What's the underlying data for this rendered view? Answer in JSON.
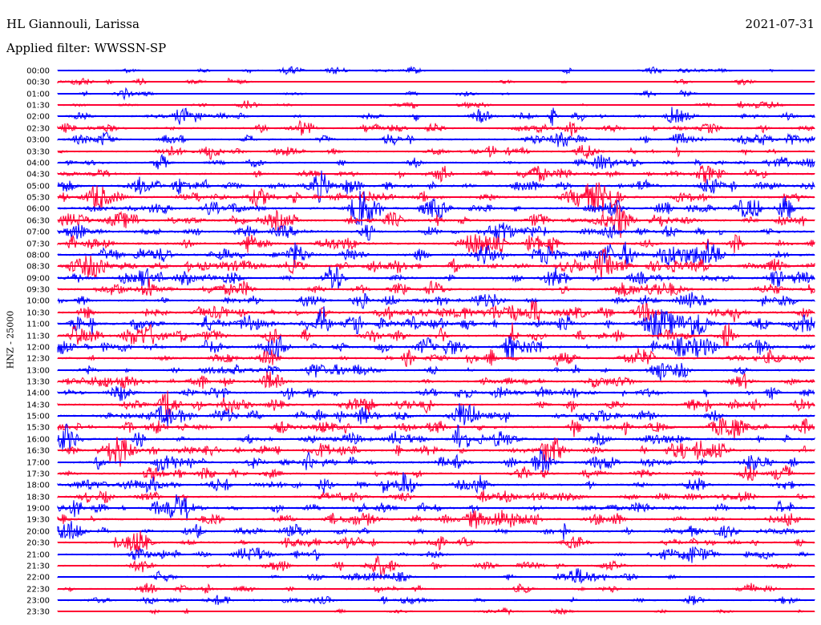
{
  "header": {
    "station": "HL Giannouli, Larissa",
    "date": "2021-07-31",
    "filter": "Applied filter: WWSSN-SP",
    "channel": "HNZ - 25000"
  },
  "trace_colors": [
    "#0000ff",
    "#ff0033"
  ],
  "rows": [
    {
      "time": "00:00",
      "color": "#0000ff",
      "activity": 0.25
    },
    {
      "time": "00:30",
      "color": "#ff0033",
      "activity": 0.2
    },
    {
      "time": "01:00",
      "color": "#0000ff",
      "activity": 0.2
    },
    {
      "time": "01:30",
      "color": "#ff0033",
      "activity": 0.3
    },
    {
      "time": "02:00",
      "color": "#0000ff",
      "activity": 0.55
    },
    {
      "time": "02:30",
      "color": "#ff0033",
      "activity": 0.55
    },
    {
      "time": "03:00",
      "color": "#0000ff",
      "activity": 0.6
    },
    {
      "time": "03:30",
      "color": "#ff0033",
      "activity": 0.5
    },
    {
      "time": "04:00",
      "color": "#0000ff",
      "activity": 0.5
    },
    {
      "time": "04:30",
      "color": "#ff0033",
      "activity": 0.6
    },
    {
      "time": "05:00",
      "color": "#0000ff",
      "activity": 0.75
    },
    {
      "time": "05:30",
      "color": "#ff0033",
      "activity": 0.75
    },
    {
      "time": "06:00",
      "color": "#0000ff",
      "activity": 0.8
    },
    {
      "time": "06:30",
      "color": "#ff0033",
      "activity": 0.8
    },
    {
      "time": "07:00",
      "color": "#0000ff",
      "activity": 0.75
    },
    {
      "time": "07:30",
      "color": "#ff0033",
      "activity": 0.8
    },
    {
      "time": "08:00",
      "color": "#0000ff",
      "activity": 0.85
    },
    {
      "time": "08:30",
      "color": "#ff0033",
      "activity": 0.85
    },
    {
      "time": "09:00",
      "color": "#0000ff",
      "activity": 0.7
    },
    {
      "time": "09:30",
      "color": "#ff0033",
      "activity": 0.75
    },
    {
      "time": "10:00",
      "color": "#0000ff",
      "activity": 0.7
    },
    {
      "time": "10:30",
      "color": "#ff0033",
      "activity": 0.8
    },
    {
      "time": "11:00",
      "color": "#0000ff",
      "activity": 0.9
    },
    {
      "time": "11:30",
      "color": "#ff0033",
      "activity": 0.8
    },
    {
      "time": "12:00",
      "color": "#0000ff",
      "activity": 0.8
    },
    {
      "time": "12:30",
      "color": "#ff0033",
      "activity": 0.7
    },
    {
      "time": "13:00",
      "color": "#0000ff",
      "activity": 0.6
    },
    {
      "time": "13:30",
      "color": "#ff0033",
      "activity": 0.65
    },
    {
      "time": "14:00",
      "color": "#0000ff",
      "activity": 0.65
    },
    {
      "time": "14:30",
      "color": "#ff0033",
      "activity": 0.7
    },
    {
      "time": "15:00",
      "color": "#0000ff",
      "activity": 0.75
    },
    {
      "time": "15:30",
      "color": "#ff0033",
      "activity": 0.7
    },
    {
      "time": "16:00",
      "color": "#0000ff",
      "activity": 0.75
    },
    {
      "time": "16:30",
      "color": "#ff0033",
      "activity": 0.8
    },
    {
      "time": "17:00",
      "color": "#0000ff",
      "activity": 0.8
    },
    {
      "time": "17:30",
      "color": "#ff0033",
      "activity": 0.6
    },
    {
      "time": "18:00",
      "color": "#0000ff",
      "activity": 0.65
    },
    {
      "time": "18:30",
      "color": "#ff0033",
      "activity": 0.6
    },
    {
      "time": "19:00",
      "color": "#0000ff",
      "activity": 0.7
    },
    {
      "time": "19:30",
      "color": "#ff0033",
      "activity": 0.7
    },
    {
      "time": "20:00",
      "color": "#0000ff",
      "activity": 0.6
    },
    {
      "time": "20:30",
      "color": "#ff0033",
      "activity": 0.6
    },
    {
      "time": "21:00",
      "color": "#0000ff",
      "activity": 0.45
    },
    {
      "time": "21:30",
      "color": "#ff0033",
      "activity": 0.45
    },
    {
      "time": "22:00",
      "color": "#0000ff",
      "activity": 0.35
    },
    {
      "time": "22:30",
      "color": "#ff0033",
      "activity": 0.45
    },
    {
      "time": "23:00",
      "color": "#0000ff",
      "activity": 0.4
    },
    {
      "time": "23:30",
      "color": "#ff0033",
      "activity": 0.15
    }
  ]
}
